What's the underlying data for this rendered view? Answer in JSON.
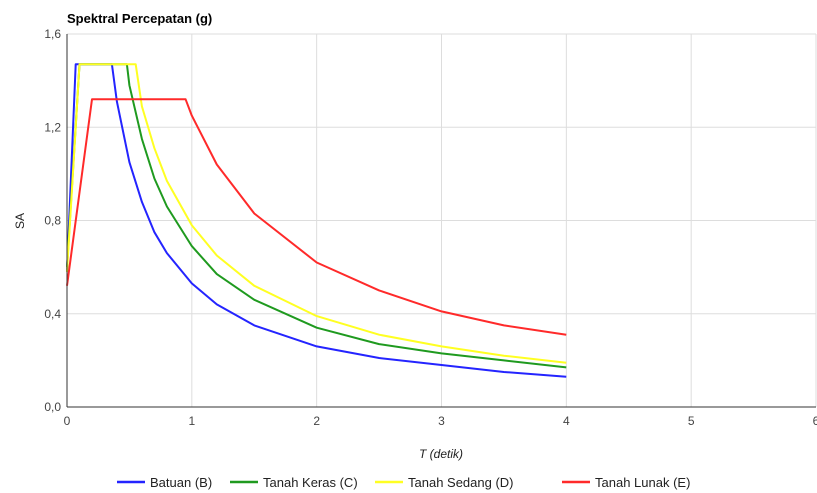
{
  "chart_data": {
    "type": "line",
    "title": "Spektral Percepatan (g)",
    "xlabel": "T (detik)",
    "ylabel": "SA",
    "xlim": [
      0,
      6
    ],
    "ylim": [
      0,
      1.6
    ],
    "x_ticks": [
      0,
      1,
      2,
      3,
      4,
      5,
      6
    ],
    "y_ticks": [
      "0,0",
      "0,4",
      "0,8",
      "1,2",
      "1,6"
    ],
    "grid": true,
    "legend_position": "bottom",
    "series": [
      {
        "name": "Batuan (B)",
        "color": "#2424ff",
        "x": [
          0,
          0.07,
          0.36,
          0.4,
          0.5,
          0.6,
          0.7,
          0.8,
          1.0,
          1.2,
          1.5,
          2.0,
          2.5,
          3.0,
          3.5,
          4.0
        ],
        "y": [
          0.58,
          1.47,
          1.47,
          1.31,
          1.05,
          0.88,
          0.75,
          0.66,
          0.53,
          0.44,
          0.35,
          0.26,
          0.21,
          0.18,
          0.15,
          0.13
        ]
      },
      {
        "name": "Tanah Keras (C)",
        "color": "#1f9a1f",
        "x": [
          0,
          0.1,
          0.48,
          0.5,
          0.6,
          0.7,
          0.8,
          1.0,
          1.2,
          1.5,
          2.0,
          2.5,
          3.0,
          3.5,
          4.0
        ],
        "y": [
          0.6,
          1.47,
          1.47,
          1.38,
          1.15,
          0.98,
          0.86,
          0.69,
          0.57,
          0.46,
          0.34,
          0.27,
          0.23,
          0.2,
          0.17
        ]
      },
      {
        "name": "Tanah Sedang (D)",
        "color": "#ffff22",
        "x": [
          0,
          0.1,
          0.55,
          0.6,
          0.7,
          0.8,
          1.0,
          1.2,
          1.5,
          2.0,
          2.5,
          3.0,
          3.5,
          4.0
        ],
        "y": [
          0.58,
          1.47,
          1.47,
          1.29,
          1.11,
          0.97,
          0.78,
          0.65,
          0.52,
          0.39,
          0.31,
          0.26,
          0.22,
          0.19
        ]
      },
      {
        "name": "Tanah Lunak (E)",
        "color": "#ff2a2a",
        "x": [
          0,
          0.2,
          0.95,
          1.0,
          1.2,
          1.5,
          2.0,
          2.5,
          3.0,
          3.5,
          4.0
        ],
        "y": [
          0.52,
          1.32,
          1.32,
          1.25,
          1.04,
          0.83,
          0.62,
          0.5,
          0.41,
          0.35,
          0.31
        ]
      }
    ]
  }
}
